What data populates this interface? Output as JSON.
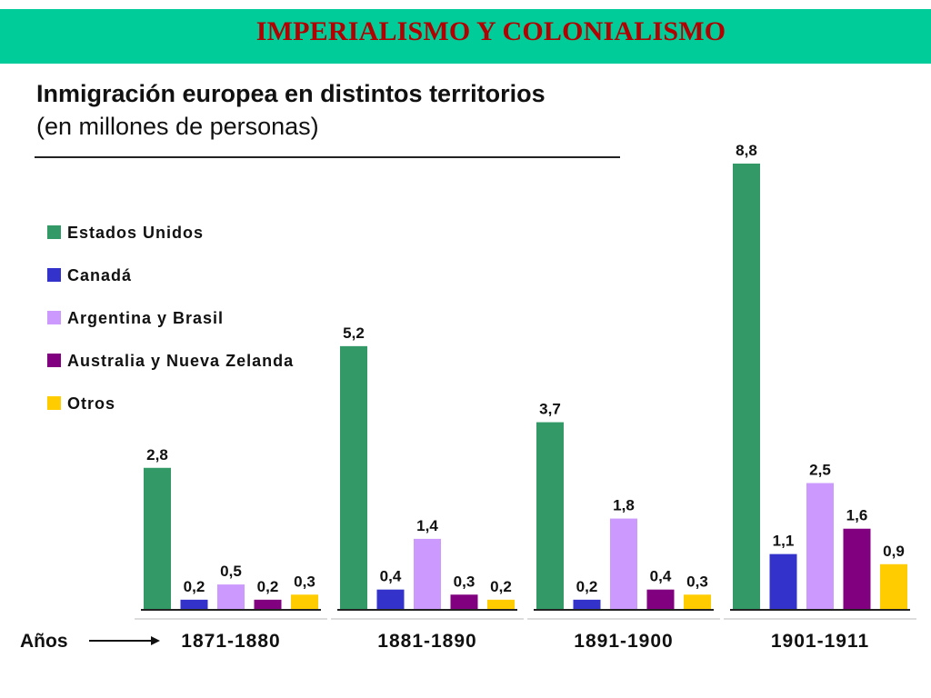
{
  "header": {
    "title": "IMPERIALISMO Y  COLONIALISMO"
  },
  "chart_data": {
    "type": "bar",
    "title": "Inmigración europea en distintos territorios",
    "subtitle": "(en millones de personas)",
    "xlabel": "Años",
    "categories": [
      "1871-1880",
      "1881-1890",
      "1891-1900",
      "1901-1911"
    ],
    "series": [
      {
        "name": "Estados Unidos",
        "color": "#339966",
        "values": [
          2.8,
          5.2,
          3.7,
          8.8
        ],
        "labels": [
          "2,8",
          "5,2",
          "3,7",
          "8,8"
        ]
      },
      {
        "name": "Canadá",
        "color": "#3333cc",
        "values": [
          0.2,
          0.4,
          0.2,
          1.1
        ],
        "labels": [
          "0,2",
          "0,4",
          "0,2",
          "1,1"
        ]
      },
      {
        "name": "Argentina y Brasil",
        "color": "#cc99ff",
        "values": [
          0.5,
          1.4,
          1.8,
          2.5
        ],
        "labels": [
          "0,5",
          "1,4",
          "1,8",
          "2,5"
        ]
      },
      {
        "name": "Australia y Nueva Zelanda",
        "color": "#800080",
        "values": [
          0.2,
          0.3,
          0.4,
          1.6
        ],
        "labels": [
          "0,2",
          "0,3",
          "0,4",
          "1,6"
        ]
      },
      {
        "name": "Otros",
        "color": "#ffcc00",
        "values": [
          0.3,
          0.2,
          0.3,
          0.9
        ],
        "labels": [
          "0,3",
          "0,2",
          "0,3",
          "0,9"
        ]
      }
    ],
    "ylim": [
      0,
      8.8
    ],
    "grid": false,
    "legend": "left"
  }
}
